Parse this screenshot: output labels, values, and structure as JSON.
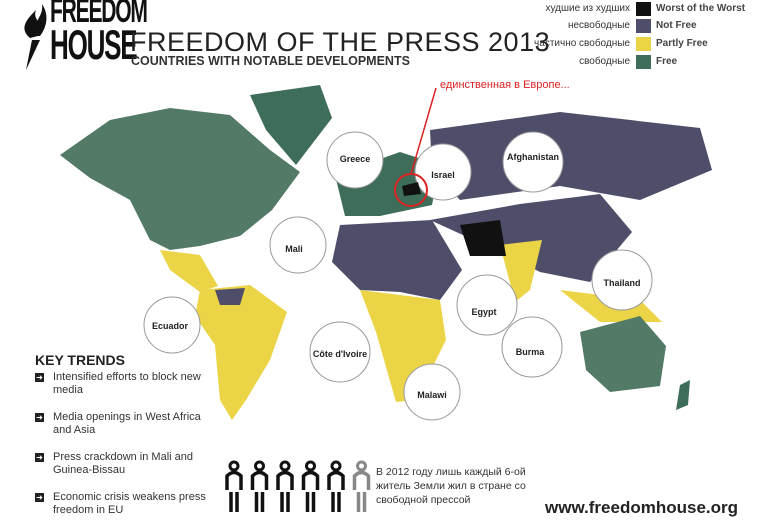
{
  "logo": {
    "line1": "FREEDOM",
    "line2": "HOUSE"
  },
  "header": {
    "title": "FREEDOM OF THE PRESS 2013",
    "subtitle": "COUNTRIES WITH NOTABLE DEVELOPMENTS"
  },
  "legend": [
    {
      "ru": "худшие из худших",
      "en": "Worst of the Worst",
      "color": "#111111"
    },
    {
      "ru": "несвободные",
      "en": "Not Free",
      "color": "#4e4e6a"
    },
    {
      "ru": "частично свободные",
      "en": "Partly Free",
      "color": "#ecd447"
    },
    {
      "ru": "свободные",
      "en": "Free",
      "color": "#3e6e5a"
    }
  ],
  "annotation": "единственная в Европе...",
  "callouts": {
    "greece": "Greece",
    "israel": "Israel",
    "afghanistan": "Afghanistan",
    "mali": "Mali",
    "thailand": "Thailand",
    "ecuador": "Ecuador",
    "egypt": "Egypt",
    "cote": "Côte d'Ivoire",
    "burma": "Burma",
    "malawi": "Malawi"
  },
  "key_trends": {
    "title": "KEY TRENDS",
    "items": [
      "Intensified efforts to block new media",
      "Media openings in West Africa and Asia",
      "Press crackdown in Mali and Guinea-Bissau",
      "Economic crisis weakens press freedom in EU"
    ]
  },
  "stat": "В 2012 году лишь каждый 6-ой житель Земли жил в стране со свободной прессой",
  "people": {
    "total": 6,
    "free": 1
  },
  "url": "www.freedomhouse.org"
}
